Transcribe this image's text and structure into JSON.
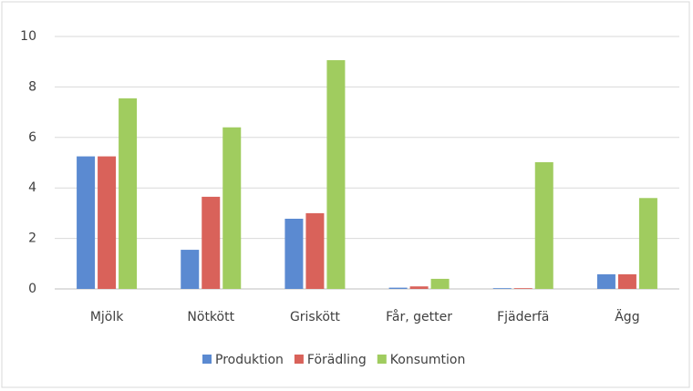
{
  "chart_data": {
    "type": "bar",
    "categories": [
      "Mjölk",
      "Nötkött",
      "Griskött",
      "Får, getter",
      "Fjäderfä",
      "Ägg"
    ],
    "series": [
      {
        "name": "Produktion",
        "color": "#5b8ad1",
        "values": [
          5.25,
          1.55,
          2.78,
          0.05,
          0.03,
          0.58
        ]
      },
      {
        "name": "Förädling",
        "color": "#d9625a",
        "values": [
          5.25,
          3.65,
          3.0,
          0.1,
          0.03,
          0.58
        ]
      },
      {
        "name": "Konsumtion",
        "color": "#a0cc5f",
        "values": [
          7.55,
          6.4,
          9.06,
          0.4,
          5.02,
          3.6
        ]
      }
    ],
    "ylim": [
      0,
      10
    ],
    "yticks": [
      0,
      2,
      4,
      6,
      8,
      10
    ],
    "grid": true
  }
}
